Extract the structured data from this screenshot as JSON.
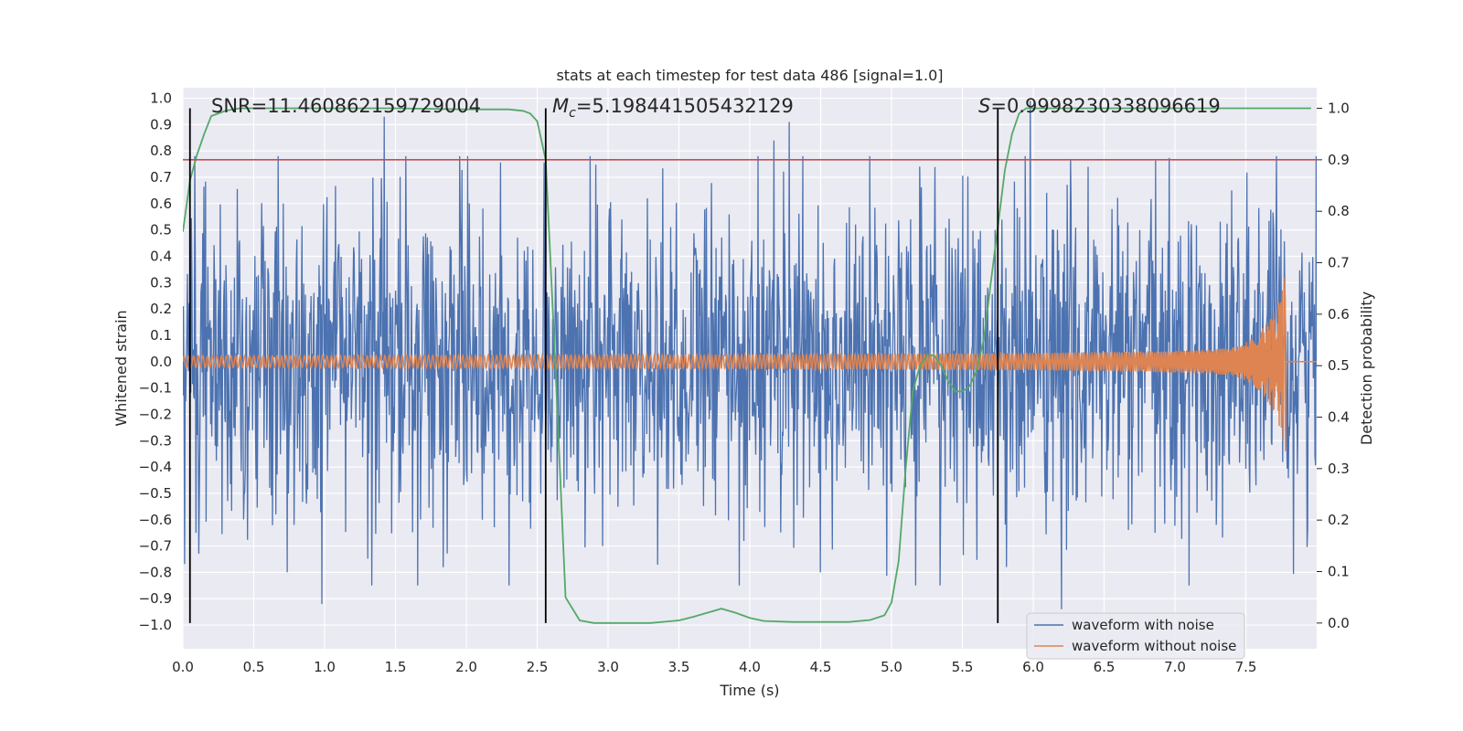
{
  "chart_data": {
    "type": "line",
    "title": "stats at each timestep for test data 486 [signal=1.0]",
    "xlabel": "Time (s)",
    "ylabel_left": "Whitened strain",
    "ylabel_right": "Detection probability",
    "xlim": [
      0.0,
      8.0
    ],
    "ylim_left": [
      -1.09,
      1.04
    ],
    "ylim_right": [
      -0.05,
      1.04
    ],
    "x_ticks": [
      0.0,
      0.5,
      1.0,
      1.5,
      2.0,
      2.5,
      3.0,
      3.5,
      4.0,
      4.5,
      5.0,
      5.5,
      6.0,
      6.5,
      7.0,
      7.5
    ],
    "x_tick_labels": [
      "0.0",
      "0.5",
      "1.0",
      "1.5",
      "2.0",
      "2.5",
      "3.0",
      "3.5",
      "4.0",
      "4.5",
      "5.0",
      "5.5",
      "6.0",
      "6.5",
      "7.0",
      "7.5"
    ],
    "y_left_ticks": [
      1.0,
      0.9,
      0.8,
      0.7,
      0.6,
      0.5,
      0.4,
      0.3,
      0.2,
      0.1,
      0.0,
      -0.1,
      -0.2,
      -0.3,
      -0.4,
      -0.5,
      -0.6,
      -0.7,
      -0.8,
      -0.9,
      -1.0
    ],
    "y_left_tick_labels": [
      "1.0",
      "0.9",
      "0.8",
      "0.7",
      "0.6",
      "0.5",
      "0.4",
      "0.3",
      "0.2",
      "0.1",
      "0.0",
      "−0.1",
      "−0.2",
      "−0.3",
      "−0.4",
      "−0.5",
      "−0.6",
      "−0.7",
      "−0.8",
      "−0.9",
      "−1.0"
    ],
    "y_right_ticks": [
      1.0,
      0.9,
      0.8,
      0.7,
      0.6,
      0.5,
      0.4,
      0.3,
      0.2,
      0.1,
      0.0
    ],
    "y_right_tick_labels": [
      "1.0",
      "0.9",
      "0.8",
      "0.7",
      "0.6",
      "0.5",
      "0.4",
      "0.3",
      "0.2",
      "0.1",
      "0.0"
    ],
    "threshold": {
      "axis": "right",
      "value": 0.9,
      "color": "#c44e52"
    },
    "vertical_markers": [
      0.05,
      2.56,
      5.75
    ],
    "annotations": {
      "snr": "SNR=11.460862159729004",
      "mc_symbol": "M",
      "mc_subscript": "c",
      "mc_value": "=5.198441505432129",
      "s_symbol": "S",
      "s_value": "=0.9998230338096619"
    },
    "legend": {
      "position": "lower-right",
      "entries": [
        "waveform with noise",
        "waveform without noise"
      ]
    },
    "series": [
      {
        "name": "waveform with noise",
        "axis": "left",
        "color": "#4c72b0",
        "kind": "noise",
        "samples": 2000,
        "typical_amplitude": 0.5,
        "spikes": [
          [
            1.42,
            0.93
          ],
          [
            4.28,
            0.91
          ],
          [
            4.17,
            0.84
          ],
          [
            5.98,
            0.99
          ],
          [
            0.98,
            -0.92
          ],
          [
            6.2,
            -0.94
          ],
          [
            4.5,
            -0.8
          ],
          [
            7.4,
            0.65
          ]
        ]
      },
      {
        "name": "waveform without noise",
        "axis": "left",
        "color": "#dd8452",
        "kind": "chirp",
        "t_coalescence": 7.78,
        "amplitude_start": 0.022,
        "amplitude_peak_positive": 0.26,
        "amplitude_peak_negative": -0.34,
        "post_merger_value": 0.0
      },
      {
        "name": "Detection probability",
        "axis": "right",
        "color": "#55a868",
        "x": [
          0.0,
          0.05,
          0.1,
          0.15,
          0.2,
          0.3,
          0.4,
          0.6,
          1.0,
          1.5,
          2.0,
          2.3,
          2.4,
          2.45,
          2.5,
          2.56,
          2.62,
          2.7,
          2.8,
          2.9,
          3.0,
          3.3,
          3.5,
          3.6,
          3.7,
          3.8,
          3.9,
          4.0,
          4.1,
          4.3,
          4.7,
          4.85,
          4.95,
          5.0,
          5.05,
          5.1,
          5.15,
          5.2,
          5.25,
          5.3,
          5.35,
          5.4,
          5.45,
          5.5,
          5.55,
          5.6,
          5.65,
          5.7,
          5.75,
          5.8,
          5.85,
          5.9,
          5.95,
          6.0,
          6.2,
          7.96
        ],
        "values": [
          0.76,
          0.86,
          0.91,
          0.95,
          0.985,
          0.995,
          1.0,
          1.0,
          1.0,
          1.0,
          0.998,
          0.998,
          0.995,
          0.99,
          0.975,
          0.9,
          0.55,
          0.05,
          0.005,
          0.0,
          0.0,
          0.0,
          0.005,
          0.012,
          0.02,
          0.028,
          0.02,
          0.01,
          0.004,
          0.002,
          0.002,
          0.006,
          0.015,
          0.04,
          0.12,
          0.3,
          0.45,
          0.5,
          0.52,
          0.52,
          0.5,
          0.47,
          0.45,
          0.45,
          0.46,
          0.49,
          0.55,
          0.66,
          0.77,
          0.88,
          0.95,
          0.99,
          1.0,
          1.0,
          1.0,
          1.0
        ]
      }
    ]
  }
}
